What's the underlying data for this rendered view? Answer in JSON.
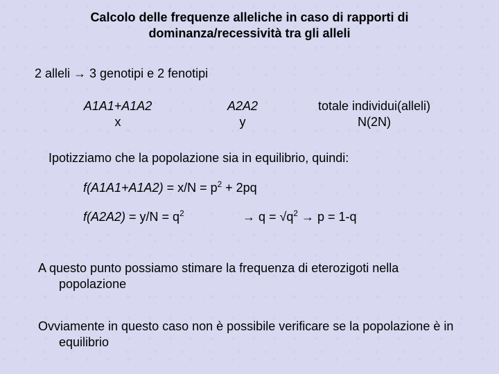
{
  "title_line1": "Calcolo delle frequenze alleliche in caso di rapporti di",
  "title_line2": "dominanza/recessività tra gli alleli",
  "premise": "2 alleli → 3 genotipi e 2 fenotipi",
  "col1_top": "A1A1+A1A2",
  "col1_bot": "x",
  "col2_top": "A2A2",
  "col2_bot": "y",
  "col3_top": "totale individui(alleli)",
  "col3_bot": "N(2N)",
  "assume": "Ipotizziamo che la popolazione sia in equilibrio, quindi:",
  "eq1_a": "f(A1A1+A1A2)",
  "eq1_b": " = x/N = p",
  "eq1_c": " + 2pq",
  "eq2_a": "f(A2A2)",
  "eq2_b": " = y/N = q",
  "eq2b_a": "→  q = √q",
  "eq2b_b": "   →  p = 1-q",
  "para1": "A questo punto possiamo stimare la frequenza di eterozigoti nella popolazione",
  "para2": "Ovviamente in questo caso non è possibile verificare se la popolazione è in equilibrio",
  "colors": {
    "background": "#d8d8f0",
    "text": "#000000"
  },
  "fonts": {
    "family": "Arial",
    "title_size_pt": 18,
    "body_size_pt": 18
  }
}
